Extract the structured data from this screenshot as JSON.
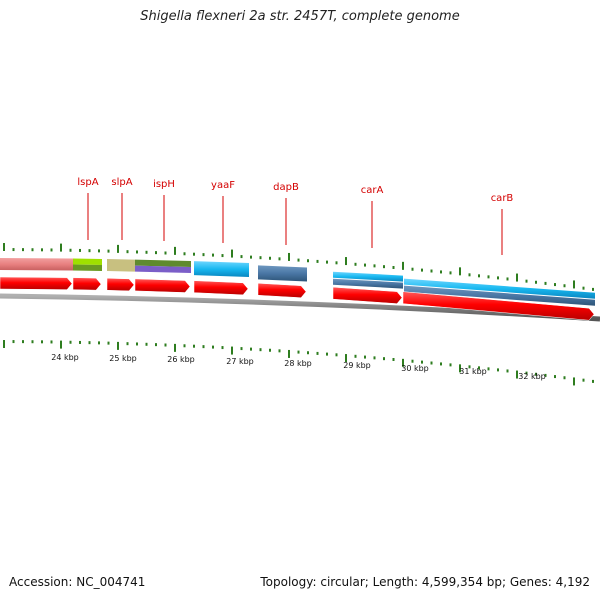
{
  "title": "Shigella flexneri 2a str. 2457T, complete genome",
  "footer": {
    "accession": "Accession: NC_004741",
    "summary": "Topology: circular; Length: 4,599,354 bp; Genes: 4,192"
  },
  "colors": {
    "gene_label": "#d40000",
    "cds_arrow": "#ff0000",
    "tick": "#2e7d1f",
    "backbone": "#7a7a7a"
  },
  "genes": [
    {
      "name": "lspA",
      "kind": "label"
    },
    {
      "name": "slpA",
      "kind": "label"
    },
    {
      "name": "ispH",
      "kind": "label"
    },
    {
      "name": "yaaF",
      "kind": "label"
    },
    {
      "name": "dapB",
      "kind": "label"
    },
    {
      "name": "carA",
      "kind": "label"
    },
    {
      "name": "carB",
      "kind": "label"
    }
  ],
  "scale_labels": [
    "24 kbp",
    "25 kbp",
    "26 kbp",
    "27 kbp",
    "28 kbp",
    "29 kbp",
    "30 kbp",
    "31 kbp",
    "32 kbp"
  ]
}
